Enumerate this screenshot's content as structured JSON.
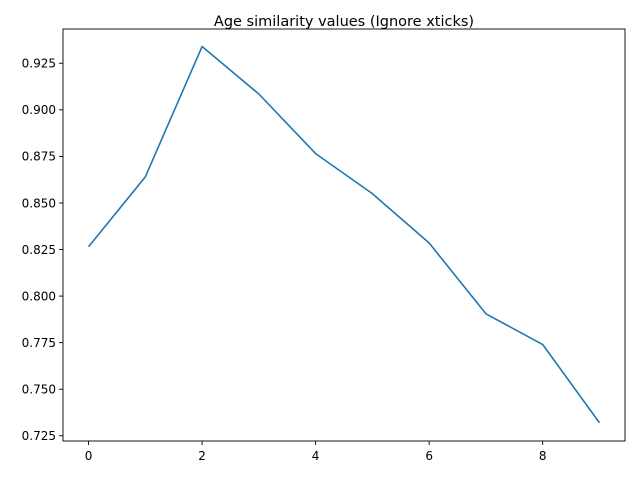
{
  "chart_data": {
    "type": "line",
    "title": "Age similarity values (Ignore xticks)",
    "xlabel": "",
    "ylabel": "",
    "xlim": [
      -0.45,
      9.45
    ],
    "ylim": [
      0.7222,
      0.9434
    ],
    "xticks": [
      0,
      2,
      4,
      6,
      8
    ],
    "xtick_labels": [
      "0",
      "2",
      "4",
      "6",
      "8"
    ],
    "yticks": [
      0.725,
      0.75,
      0.775,
      0.8,
      0.825,
      0.85,
      0.875,
      0.9,
      0.925
    ],
    "ytick_labels": [
      "0.725",
      "0.750",
      "0.775",
      "0.800",
      "0.825",
      "0.850",
      "0.875",
      "0.900",
      "0.925"
    ],
    "grid": false,
    "series": [
      {
        "color": "#1f77b4",
        "x": [
          0,
          1,
          2,
          3,
          4,
          5,
          6,
          7,
          8,
          9
        ],
        "values": [
          0.8265,
          0.864,
          0.934,
          0.9085,
          0.8765,
          0.855,
          0.8285,
          0.7905,
          0.774,
          0.732
        ]
      }
    ]
  }
}
